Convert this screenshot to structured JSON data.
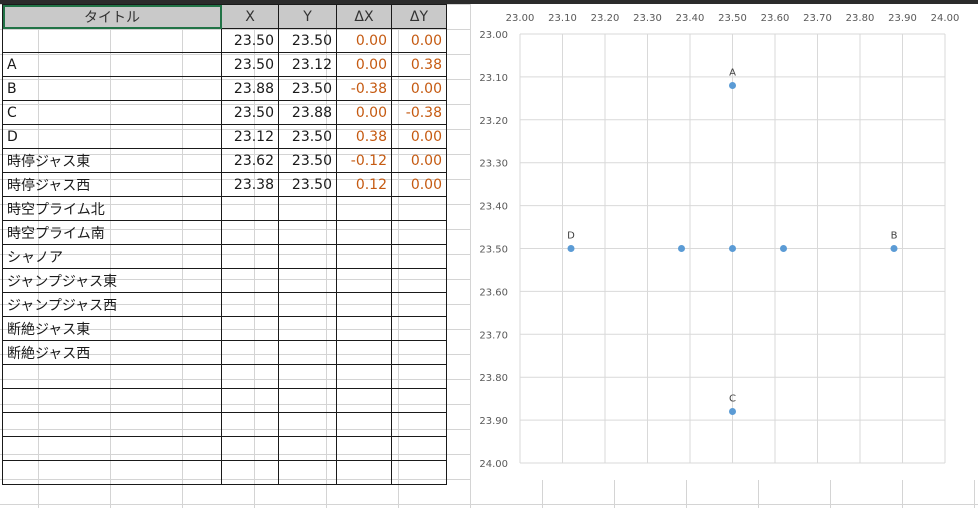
{
  "table": {
    "headers": {
      "title": "タイトル",
      "x": "X",
      "y": "Y",
      "dx": "ΔX",
      "dy": "ΔY"
    },
    "rows": [
      {
        "label": "",
        "x": "23.50",
        "y": "23.50",
        "dx": "0.00",
        "dy": "0.00"
      },
      {
        "label": "A",
        "x": "23.50",
        "y": "23.12",
        "dx": "0.00",
        "dy": "0.38"
      },
      {
        "label": "B",
        "x": "23.88",
        "y": "23.50",
        "dx": "-0.38",
        "dy": "0.00"
      },
      {
        "label": "C",
        "x": "23.50",
        "y": "23.88",
        "dx": "0.00",
        "dy": "-0.38"
      },
      {
        "label": "D",
        "x": "23.12",
        "y": "23.50",
        "dx": "0.38",
        "dy": "0.00"
      },
      {
        "label": "時停ジャス東",
        "x": "23.62",
        "y": "23.50",
        "dx": "-0.12",
        "dy": "0.00"
      },
      {
        "label": "時停ジャス西",
        "x": "23.38",
        "y": "23.50",
        "dx": "0.12",
        "dy": "0.00"
      },
      {
        "label": "時空プライム北",
        "x": "",
        "y": "",
        "dx": "",
        "dy": ""
      },
      {
        "label": "時空プライム南",
        "x": "",
        "y": "",
        "dx": "",
        "dy": ""
      },
      {
        "label": "シャノア",
        "x": "",
        "y": "",
        "dx": "",
        "dy": ""
      },
      {
        "label": "ジャンプジャス東",
        "x": "",
        "y": "",
        "dx": "",
        "dy": ""
      },
      {
        "label": "ジャンプジャス西",
        "x": "",
        "y": "",
        "dx": "",
        "dy": ""
      },
      {
        "label": "断絶ジャス東",
        "x": "",
        "y": "",
        "dx": "",
        "dy": ""
      },
      {
        "label": "断絶ジャス西",
        "x": "",
        "y": "",
        "dx": "",
        "dy": ""
      },
      {
        "label": "",
        "x": "",
        "y": "",
        "dx": "",
        "dy": ""
      },
      {
        "label": "",
        "x": "",
        "y": "",
        "dx": "",
        "dy": ""
      },
      {
        "label": "",
        "x": "",
        "y": "",
        "dx": "",
        "dy": ""
      },
      {
        "label": "",
        "x": "",
        "y": "",
        "dx": "",
        "dy": ""
      },
      {
        "label": "",
        "x": "",
        "y": "",
        "dx": "",
        "dy": ""
      }
    ]
  },
  "colors": {
    "delta_text": "#c55a11",
    "point": "#5b9bd5",
    "selection": "#217346",
    "header_bg": "#c9c9c9"
  },
  "chart_data": {
    "type": "scatter",
    "xlim": [
      23.0,
      24.0
    ],
    "ylim": [
      23.0,
      24.0
    ],
    "y_reversed": true,
    "x_axis_position": "top",
    "x_ticks": [
      "23.00",
      "23.10",
      "23.20",
      "23.30",
      "23.40",
      "23.50",
      "23.60",
      "23.70",
      "23.80",
      "23.90",
      "24.00"
    ],
    "y_ticks": [
      "23.00",
      "23.10",
      "23.20",
      "23.30",
      "23.40",
      "23.50",
      "23.60",
      "23.70",
      "23.80",
      "23.90",
      "24.00"
    ],
    "grid": true,
    "points": [
      {
        "label": "",
        "x": 23.5,
        "y": 23.5
      },
      {
        "label": "A",
        "x": 23.5,
        "y": 23.12
      },
      {
        "label": "B",
        "x": 23.88,
        "y": 23.5
      },
      {
        "label": "C",
        "x": 23.5,
        "y": 23.88
      },
      {
        "label": "D",
        "x": 23.12,
        "y": 23.5
      },
      {
        "label": "",
        "x": 23.62,
        "y": 23.5
      },
      {
        "label": "",
        "x": 23.38,
        "y": 23.5
      }
    ]
  }
}
